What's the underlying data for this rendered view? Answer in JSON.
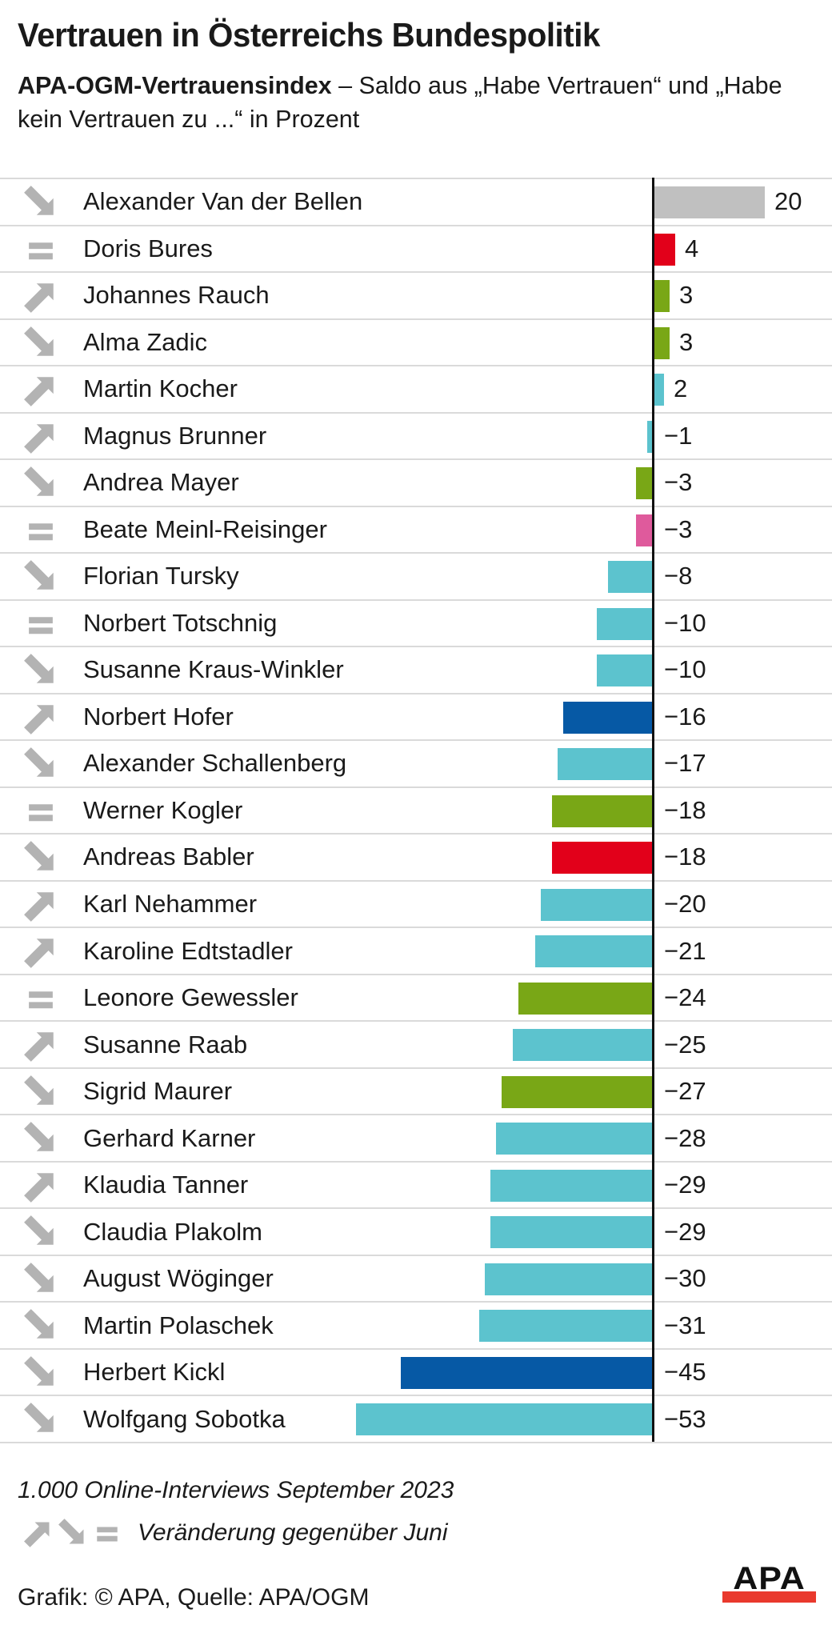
{
  "header": {
    "title": "Vertrauen in Österreichs Bundespolitik",
    "subtitle_bold": "APA-OGM-Vertrauensindex",
    "subtitle_rest": " – Saldo aus „Habe Vertrauen“ und „Habe kein Vertrauen zu ...“ in Prozent"
  },
  "chart_data": {
    "type": "bar",
    "orientation": "horizontal",
    "title": "APA-OGM-Vertrauensindex",
    "unit": "Prozent (Saldo)",
    "xlim": [
      -60,
      25
    ],
    "zero_axis_line": true,
    "categories": [
      "Alexander Van der Bellen",
      "Doris Bures",
      "Johannes Rauch",
      "Alma Zadic",
      "Martin Kocher",
      "Magnus Brunner",
      "Andrea Mayer",
      "Beate Meinl-Reisinger",
      "Florian Tursky",
      "Norbert Totschnig",
      "Susanne Kraus-Winkler",
      "Norbert Hofer",
      "Alexander Schallenberg",
      "Werner Kogler",
      "Andreas Babler",
      "Karl Nehammer",
      "Karoline Edtstadler",
      "Leonore Gewessler",
      "Susanne Raab",
      "Sigrid Maurer",
      "Gerhard Karner",
      "Klaudia Tanner",
      "Claudia Plakolm",
      "August Wöginger",
      "Martin Polaschek",
      "Herbert Kickl",
      "Wolfgang Sobotka"
    ],
    "values": [
      20,
      4,
      3,
      3,
      2,
      -1,
      -3,
      -3,
      -8,
      -10,
      -10,
      -16,
      -17,
      -18,
      -18,
      -20,
      -21,
      -24,
      -25,
      -27,
      -28,
      -29,
      -29,
      -30,
      -31,
      -45,
      -53
    ],
    "rows": [
      {
        "name": "Alexander Van der Bellen",
        "value": 20,
        "label": "20",
        "trend": "down",
        "color": "gray"
      },
      {
        "name": "Doris Bures",
        "value": 4,
        "label": "4",
        "trend": "equal",
        "color": "red"
      },
      {
        "name": "Johannes Rauch",
        "value": 3,
        "label": "3",
        "trend": "up",
        "color": "green"
      },
      {
        "name": "Alma Zadic",
        "value": 3,
        "label": "3",
        "trend": "down",
        "color": "green"
      },
      {
        "name": "Martin Kocher",
        "value": 2,
        "label": "2",
        "trend": "up",
        "color": "cyan"
      },
      {
        "name": "Magnus Brunner",
        "value": -1,
        "label": "−1",
        "trend": "up",
        "color": "cyan"
      },
      {
        "name": "Andrea Mayer",
        "value": -3,
        "label": "−3",
        "trend": "down",
        "color": "green"
      },
      {
        "name": "Beate Meinl-Reisinger",
        "value": -3,
        "label": "−3",
        "trend": "equal",
        "color": "pink"
      },
      {
        "name": "Florian Tursky",
        "value": -8,
        "label": "−8",
        "trend": "down",
        "color": "cyan"
      },
      {
        "name": "Norbert Totschnig",
        "value": -10,
        "label": "−10",
        "trend": "equal",
        "color": "cyan"
      },
      {
        "name": "Susanne Kraus-Winkler",
        "value": -10,
        "label": "−10",
        "trend": "down",
        "color": "cyan"
      },
      {
        "name": "Norbert Hofer",
        "value": -16,
        "label": "−16",
        "trend": "up",
        "color": "blue"
      },
      {
        "name": "Alexander Schallenberg",
        "value": -17,
        "label": "−17",
        "trend": "down",
        "color": "cyan"
      },
      {
        "name": "Werner Kogler",
        "value": -18,
        "label": "−18",
        "trend": "equal",
        "color": "green"
      },
      {
        "name": "Andreas Babler",
        "value": -18,
        "label": "−18",
        "trend": "down",
        "color": "red"
      },
      {
        "name": "Karl Nehammer",
        "value": -20,
        "label": "−20",
        "trend": "up",
        "color": "cyan"
      },
      {
        "name": "Karoline Edtstadler",
        "value": -21,
        "label": "−21",
        "trend": "up",
        "color": "cyan"
      },
      {
        "name": "Leonore Gewessler",
        "value": -24,
        "label": "−24",
        "trend": "equal",
        "color": "green"
      },
      {
        "name": "Susanne Raab",
        "value": -25,
        "label": "−25",
        "trend": "up",
        "color": "cyan"
      },
      {
        "name": "Sigrid Maurer",
        "value": -27,
        "label": "−27",
        "trend": "down",
        "color": "green"
      },
      {
        "name": "Gerhard Karner",
        "value": -28,
        "label": "−28",
        "trend": "down",
        "color": "cyan"
      },
      {
        "name": "Klaudia Tanner",
        "value": -29,
        "label": "−29",
        "trend": "up",
        "color": "cyan"
      },
      {
        "name": "Claudia Plakolm",
        "value": -29,
        "label": "−29",
        "trend": "down",
        "color": "cyan"
      },
      {
        "name": "August Wöginger",
        "value": -30,
        "label": "−30",
        "trend": "down",
        "color": "cyan"
      },
      {
        "name": "Martin Polaschek",
        "value": -31,
        "label": "−31",
        "trend": "down",
        "color": "cyan"
      },
      {
        "name": "Herbert Kickl",
        "value": -45,
        "label": "−45",
        "trend": "down",
        "color": "blue"
      },
      {
        "name": "Wolfgang Sobotka",
        "value": -53,
        "label": "−53",
        "trend": "down",
        "color": "cyan"
      }
    ]
  },
  "colors": {
    "gray": "#c0c0c0",
    "red": "#e2001a",
    "green": "#79a716",
    "cyan": "#5cc3ce",
    "pink": "#df5a9c",
    "blue": "#0659a5",
    "trend_gray": "#b3b3b3",
    "separator": "#dadada",
    "axis": "#111111",
    "logo_red": "#e9392d"
  },
  "footer": {
    "note": "1.000 Online-Interviews September 2023",
    "legend_label": "Veränderung gegenüber Juni",
    "credit": "Grafik: © APA, Quelle: APA/OGM",
    "logo_text": "APA"
  }
}
